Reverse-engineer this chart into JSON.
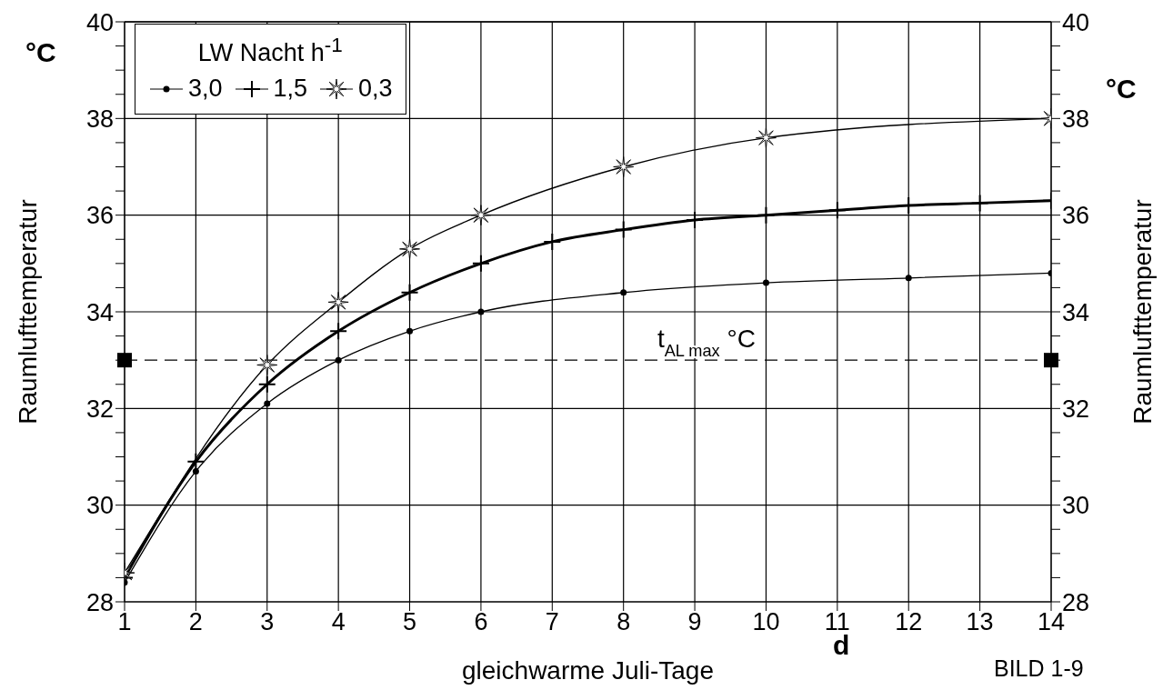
{
  "chart_data": {
    "type": "line",
    "ylabel": "Raumlufttemperatur",
    "y2label": "Raumlufttemperatur",
    "xlabel": "gleichwarme Juli-Tage",
    "legend_title": "LW Nacht h$^{-1}$",
    "legend": "top left",
    "grid": true,
    "x": [
      1,
      2,
      3,
      4,
      5,
      6,
      7,
      8,
      9,
      10,
      11,
      12,
      13,
      14
    ],
    "series": [
      {
        "name": "3,0",
        "color": "#000000",
        "marker": "circle",
        "values": [
          28.4,
          30.7,
          32.1,
          33.0,
          33.6,
          34.0,
          null,
          34.4,
          null,
          34.6,
          null,
          34.7,
          null,
          34.8
        ]
      },
      {
        "name": "1,5",
        "color": "#000000",
        "marker": "cross",
        "values": [
          28.5,
          30.9,
          32.5,
          33.6,
          34.4,
          35.0,
          35.45,
          35.7,
          35.9,
          36.0,
          36.1,
          36.2,
          36.25,
          36.3
        ]
      },
      {
        "name": "0,3",
        "color": "#000000",
        "marker": "star",
        "values": [
          28.6,
          null,
          32.9,
          34.2,
          35.3,
          36.0,
          null,
          37.0,
          null,
          37.6,
          null,
          null,
          null,
          38.0
        ]
      }
    ],
    "xlim": [
      1,
      14
    ],
    "xticks": [
      1,
      2,
      3,
      4,
      5,
      6,
      7,
      8,
      9,
      10,
      11,
      12,
      13,
      14
    ],
    "ylim": [
      28,
      40
    ],
    "yticks": [
      28,
      {
        "value": 28.5,
        "label": null
      },
      {
        "value": 29,
        "label": null
      },
      {
        "value": 29.5,
        "label": null
      },
      30,
      {
        "value": 30.5,
        "label": null
      },
      {
        "value": 31,
        "label": null
      },
      {
        "value": 31.5,
        "label": null
      },
      32,
      {
        "value": 32.5,
        "label": null
      },
      {
        "value": 33,
        "label": null
      },
      {
        "value": 33.5,
        "label": null
      },
      34,
      {
        "value": 34.5,
        "label": null
      },
      {
        "value": 35,
        "label": null
      },
      {
        "value": 35.5,
        "label": null
      },
      36,
      {
        "value": 36.5,
        "label": null
      },
      {
        "value": 37,
        "label": null
      },
      {
        "value": 37.5,
        "label": null
      },
      38,
      {
        "value": 38.5,
        "label": null
      },
      {
        "value": 39,
        "label": null
      },
      {
        "value": 39.5,
        "label": null
      },
      40
    ],
    "y2lim": [
      28,
      40
    ],
    "y2ticks": [
      28,
      {
        "value": 28.5,
        "label": null
      },
      {
        "value": 29,
        "label": null
      },
      {
        "value": 29.5,
        "label": null
      },
      30,
      {
        "value": 30.5,
        "label": null
      },
      {
        "value": 31,
        "label": null
      },
      {
        "value": 31.5,
        "label": null
      },
      32,
      {
        "value": 32.5,
        "label": null
      },
      {
        "value": 33,
        "label": null
      },
      {
        "value": 33.5,
        "label": null
      },
      34,
      {
        "value": 34.5,
        "label": null
      },
      {
        "value": 35,
        "label": null
      },
      {
        "value": 35.5,
        "label": null
      },
      36,
      {
        "value": 36.5,
        "label": null
      },
      {
        "value": 37,
        "label": null
      },
      {
        "value": 37.5,
        "label": null
      },
      38,
      {
        "value": 38.5,
        "label": null
      },
      {
        "value": 39,
        "label": null
      },
      {
        "value": 39.5,
        "label": null
      },
      40
    ],
    "ref_lines": [
      {
        "axis": "y",
        "value": 33,
        "label": "t$_{AL max}$ °C",
        "line_style": "dashed",
        "color": "#000000"
      }
    ],
    "annotations": [
      "°C",
      "°C",
      "d",
      "BILD 1-9"
    ]
  }
}
